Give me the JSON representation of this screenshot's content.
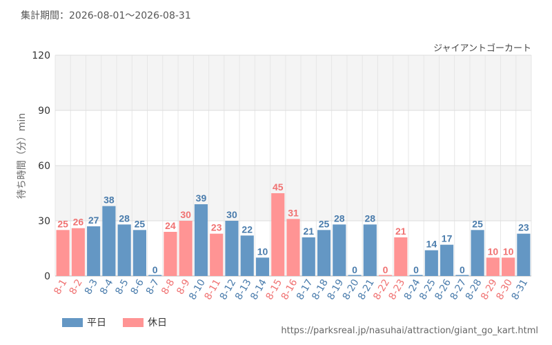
{
  "period_label": "集計期間：2026-08-01～2026-08-31",
  "source_url": "https://parksreal.jp/nasuhai/attraction/giant_go_kart.html",
  "legend": [
    {
      "label": "平日",
      "color": "#6497c4"
    },
    {
      "label": "休日",
      "color": "#ff9494"
    }
  ],
  "colors": {
    "weekday_bar": "#6497c4",
    "weekday_text": "#4a7cac",
    "holiday_bar": "#ff9494",
    "holiday_text": "#f07272"
  },
  "chart_data": {
    "type": "bar",
    "title": "ジャイアントゴーカート",
    "ylabel": "待ち時間（分）min",
    "xlabel": "",
    "ylim": [
      0,
      120
    ],
    "yticks": [
      0,
      30,
      60,
      90,
      120
    ],
    "grid": true,
    "legend_position": "bottom-left",
    "categories": [
      "8-1",
      "8-2",
      "8-3",
      "8-4",
      "8-5",
      "8-6",
      "8-7",
      "8-8",
      "8-9",
      "8-10",
      "8-11",
      "8-12",
      "8-13",
      "8-14",
      "8-15",
      "8-16",
      "8-17",
      "8-18",
      "8-19",
      "8-20",
      "8-21",
      "8-22",
      "8-23",
      "8-24",
      "8-25",
      "8-26",
      "8-27",
      "8-28",
      "8-29",
      "8-30",
      "8-31"
    ],
    "values": [
      25,
      26,
      27,
      38,
      28,
      25,
      0,
      24,
      30,
      39,
      23,
      30,
      22,
      10,
      45,
      31,
      21,
      25,
      28,
      0,
      28,
      0,
      21,
      0,
      14,
      17,
      0,
      25,
      10,
      10,
      23
    ],
    "day_type": [
      "休日",
      "休日",
      "平日",
      "平日",
      "平日",
      "平日",
      "平日",
      "休日",
      "休日",
      "平日",
      "休日",
      "平日",
      "平日",
      "平日",
      "休日",
      "休日",
      "平日",
      "平日",
      "平日",
      "平日",
      "平日",
      "休日",
      "休日",
      "平日",
      "平日",
      "平日",
      "平日",
      "平日",
      "休日",
      "休日",
      "平日"
    ]
  }
}
